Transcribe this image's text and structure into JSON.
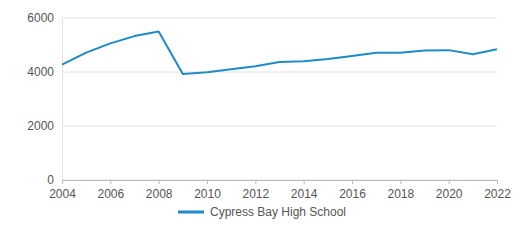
{
  "chart_data": {
    "type": "line",
    "x": [
      2004,
      2005,
      2006,
      2007,
      2008,
      2009,
      2010,
      2011,
      2012,
      2013,
      2014,
      2015,
      2016,
      2017,
      2018,
      2019,
      2020,
      2021,
      2022
    ],
    "series": [
      {
        "name": "Cypress Bay High School",
        "color": "#1f8ac8",
        "values": [
          4270,
          4720,
          5060,
          5330,
          5500,
          3930,
          3990,
          4100,
          4210,
          4370,
          4400,
          4480,
          4590,
          4710,
          4710,
          4800,
          4810,
          4660,
          4840
        ]
      }
    ],
    "xlim": [
      2004,
      2022
    ],
    "xticks": [
      2004,
      2006,
      2008,
      2010,
      2012,
      2014,
      2016,
      2018,
      2020,
      2022
    ],
    "ylim": [
      0,
      6000
    ],
    "yticks": [
      0,
      2000,
      4000,
      6000
    ],
    "grid": true,
    "legend": "bottom"
  }
}
